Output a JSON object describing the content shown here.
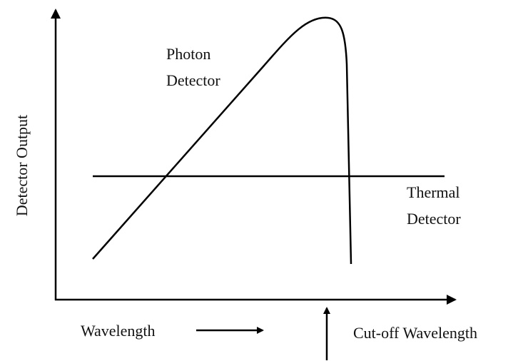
{
  "y_axis_label": "Detector Output",
  "x_axis_label": "Wavelength",
  "photon_detector": [
    "Photon",
    "Detector"
  ],
  "thermal_detector": [
    "Thermal",
    "Detector"
  ],
  "cutoff_label": "Cut-off Wavelength"
}
